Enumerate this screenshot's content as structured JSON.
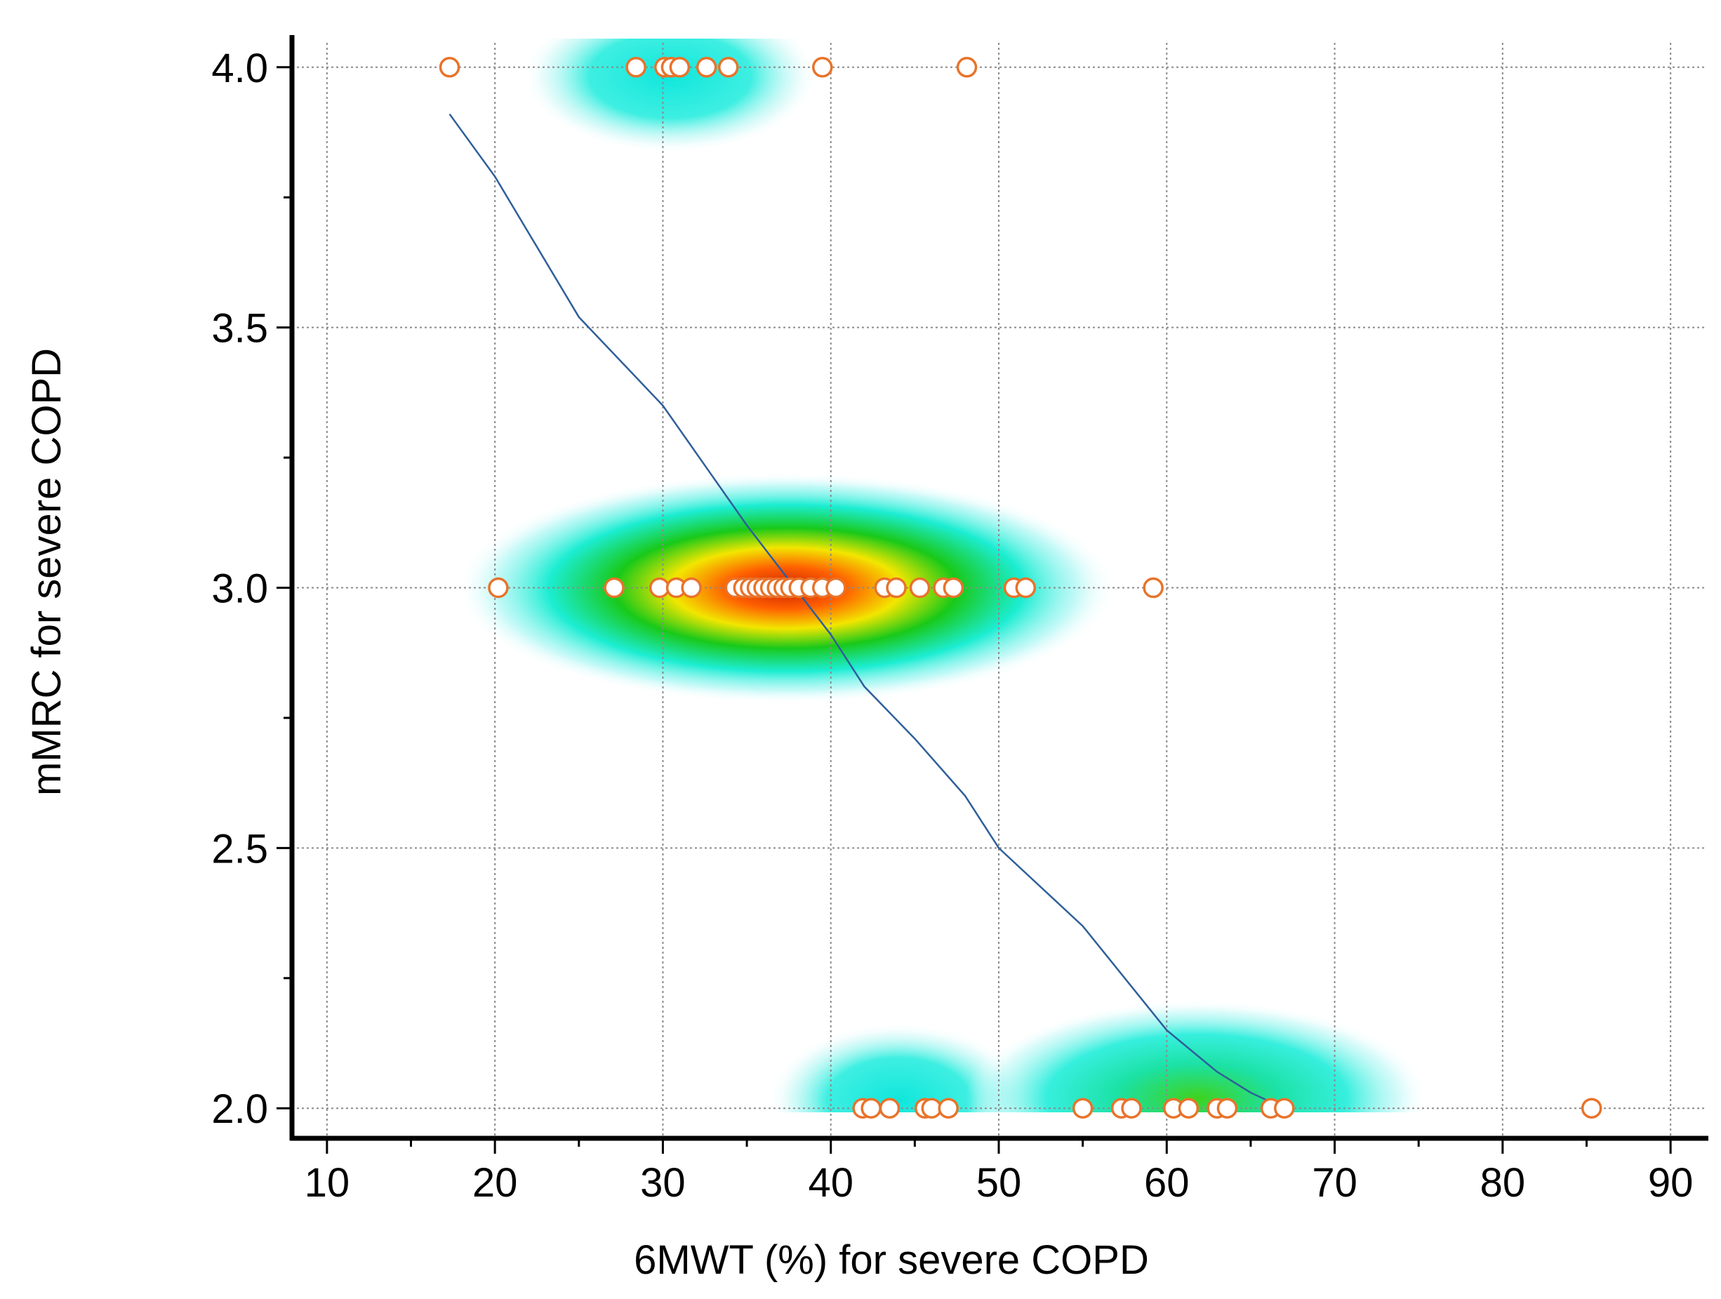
{
  "chart_data": {
    "type": "scatter",
    "title": "",
    "xlabel": "6MWT (%) for severe COPD",
    "ylabel": "mMRC for severe COPD",
    "xlim": [
      8,
      92
    ],
    "ylim": [
      1.945,
      4.055
    ],
    "xticks": [
      10,
      20,
      30,
      40,
      50,
      60,
      70,
      80,
      90
    ],
    "xtick_labels": [
      "10",
      "20",
      "30",
      "40",
      "50",
      "60",
      "70",
      "80",
      "90"
    ],
    "yticks": [
      2.0,
      2.5,
      3.0,
      3.5,
      4.0
    ],
    "ytick_labels": [
      "2.0",
      "2.5",
      "3.0",
      "3.5",
      "4.0"
    ],
    "grid": true,
    "colors": {
      "point_edge": "#e8732a",
      "point_fill": "#ffffff",
      "fit_line": "#2e5f9a",
      "grid": "#8a8a8a",
      "axis": "#000000"
    },
    "series": [
      {
        "name": "observations",
        "type": "scatter",
        "points": [
          [
            17.3,
            4.0
          ],
          [
            28.4,
            4.0
          ],
          [
            30.1,
            4.0
          ],
          [
            30.5,
            4.0
          ],
          [
            31.0,
            4.0
          ],
          [
            32.6,
            4.0
          ],
          [
            33.9,
            4.0
          ],
          [
            39.5,
            4.0
          ],
          [
            48.1,
            4.0
          ],
          [
            20.2,
            3.0
          ],
          [
            27.1,
            3.0
          ],
          [
            29.8,
            3.0
          ],
          [
            30.8,
            3.0
          ],
          [
            31.7,
            3.0
          ],
          [
            34.3,
            3.0
          ],
          [
            34.8,
            3.0
          ],
          [
            35.2,
            3.0
          ],
          [
            35.6,
            3.0
          ],
          [
            36.0,
            3.0
          ],
          [
            36.4,
            3.0
          ],
          [
            36.8,
            3.0
          ],
          [
            37.2,
            3.0
          ],
          [
            37.6,
            3.0
          ],
          [
            38.1,
            3.0
          ],
          [
            38.8,
            3.0
          ],
          [
            39.5,
            3.0
          ],
          [
            40.3,
            3.0
          ],
          [
            43.2,
            3.0
          ],
          [
            43.9,
            3.0
          ],
          [
            45.3,
            3.0
          ],
          [
            46.7,
            3.0
          ],
          [
            47.3,
            3.0
          ],
          [
            50.9,
            3.0
          ],
          [
            51.6,
            3.0
          ],
          [
            59.2,
            3.0
          ],
          [
            41.9,
            2.0
          ],
          [
            42.4,
            2.0
          ],
          [
            43.5,
            2.0
          ],
          [
            45.6,
            2.0
          ],
          [
            46.0,
            2.0
          ],
          [
            47.0,
            2.0
          ],
          [
            55.0,
            2.0
          ],
          [
            57.3,
            2.0
          ],
          [
            57.9,
            2.0
          ],
          [
            60.4,
            2.0
          ],
          [
            61.3,
            2.0
          ],
          [
            63.0,
            2.0
          ],
          [
            63.6,
            2.0
          ],
          [
            66.2,
            2.0
          ],
          [
            67.0,
            2.0
          ],
          [
            85.3,
            2.0
          ]
        ]
      },
      {
        "name": "smoothed fit",
        "type": "line",
        "points": [
          [
            17.3,
            3.91
          ],
          [
            20,
            3.79
          ],
          [
            25,
            3.52
          ],
          [
            30,
            3.35
          ],
          [
            35,
            3.12
          ],
          [
            40,
            2.91
          ],
          [
            42,
            2.81
          ],
          [
            45,
            2.71
          ],
          [
            48,
            2.6
          ],
          [
            50,
            2.5
          ],
          [
            55,
            2.35
          ],
          [
            60,
            2.15
          ],
          [
            63,
            2.07
          ],
          [
            65,
            2.03
          ],
          [
            67,
            2.0
          ]
        ]
      }
    ],
    "density_clusters": [
      {
        "x": 37,
        "y": 3.0,
        "intensity": "high"
      },
      {
        "x": 31,
        "y": 4.0,
        "intensity": "low"
      },
      {
        "x": 44,
        "y": 2.0,
        "intensity": "low"
      },
      {
        "x": 61,
        "y": 2.0,
        "intensity": "medium"
      }
    ]
  }
}
